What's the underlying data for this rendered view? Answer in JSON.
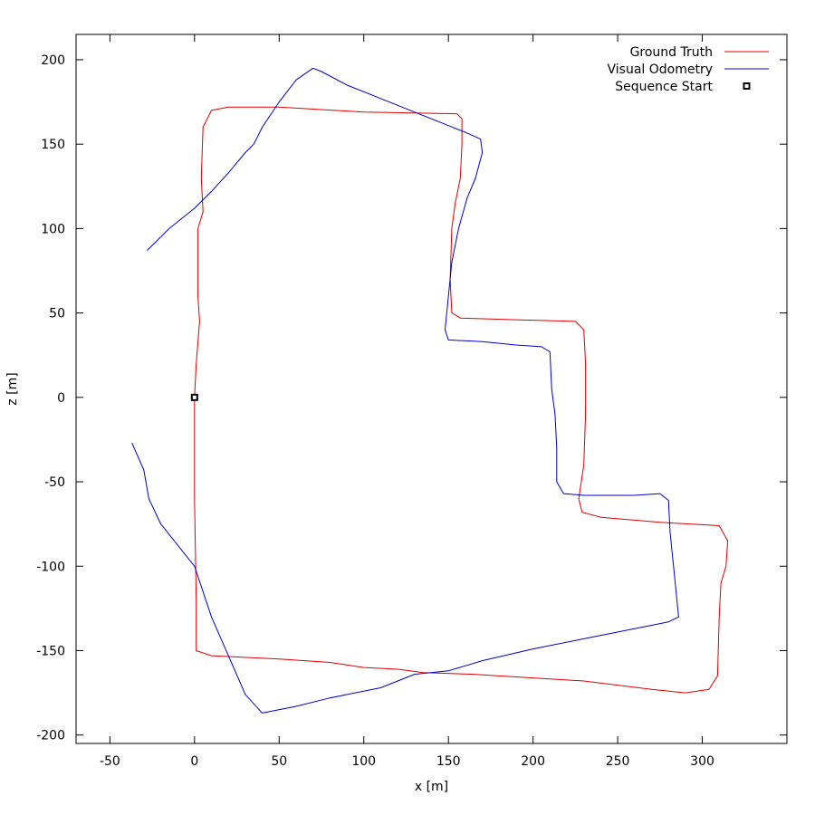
{
  "chart_data": {
    "type": "line",
    "title": "",
    "xlabel": "x [m]",
    "ylabel": "z [m]",
    "xlim": [
      -70,
      350
    ],
    "ylim": [
      -205,
      215
    ],
    "x_ticks": [
      -50,
      0,
      50,
      100,
      150,
      200,
      250,
      300
    ],
    "y_ticks": [
      -200,
      -150,
      -100,
      -50,
      0,
      50,
      100,
      150,
      200
    ],
    "grid": false,
    "legend_position": "top-right",
    "series": [
      {
        "name": "Ground Truth",
        "color": "#e00000",
        "points": [
          [
            0,
            0
          ],
          [
            1,
            20
          ],
          [
            3,
            45
          ],
          [
            2,
            60
          ],
          [
            2,
            100
          ],
          [
            5,
            110
          ],
          [
            4,
            130
          ],
          [
            5,
            160
          ],
          [
            10,
            170
          ],
          [
            20,
            172
          ],
          [
            50,
            172
          ],
          [
            100,
            169
          ],
          [
            155,
            168
          ],
          [
            158,
            165
          ],
          [
            158,
            150
          ],
          [
            157,
            130
          ],
          [
            154,
            115
          ],
          [
            152,
            100
          ],
          [
            151,
            70
          ],
          [
            152,
            50
          ],
          [
            157,
            47
          ],
          [
            190,
            46
          ],
          [
            225,
            45
          ],
          [
            230,
            40
          ],
          [
            231,
            20
          ],
          [
            231,
            -10
          ],
          [
            230,
            -40
          ],
          [
            227,
            -60
          ],
          [
            229,
            -68
          ],
          [
            240,
            -71
          ],
          [
            275,
            -74
          ],
          [
            310,
            -76
          ],
          [
            315,
            -85
          ],
          [
            314,
            -100
          ],
          [
            311,
            -110
          ],
          [
            310,
            -130
          ],
          [
            309,
            -165
          ],
          [
            304,
            -173
          ],
          [
            290,
            -175
          ],
          [
            270,
            -173
          ],
          [
            230,
            -168
          ],
          [
            180,
            -165
          ],
          [
            165,
            -164
          ],
          [
            135,
            -163
          ],
          [
            120,
            -161
          ],
          [
            100,
            -160
          ],
          [
            80,
            -157
          ],
          [
            50,
            -155
          ],
          [
            10,
            -153
          ],
          [
            1,
            -150
          ],
          [
            1,
            -120
          ],
          [
            0,
            -60
          ],
          [
            0,
            -20
          ],
          [
            0,
            0
          ]
        ]
      },
      {
        "name": "Visual Odometry",
        "color": "#0000c8",
        "points": [
          [
            -28,
            87
          ],
          [
            -15,
            100
          ],
          [
            0,
            112
          ],
          [
            10,
            122
          ],
          [
            20,
            133
          ],
          [
            30,
            145
          ],
          [
            35,
            150
          ],
          [
            40,
            160
          ],
          [
            50,
            175
          ],
          [
            60,
            188
          ],
          [
            70,
            195
          ],
          [
            75,
            193
          ],
          [
            90,
            185
          ],
          [
            110,
            177
          ],
          [
            130,
            169
          ],
          [
            150,
            161
          ],
          [
            160,
            157
          ],
          [
            169,
            153
          ],
          [
            170,
            145
          ],
          [
            166,
            130
          ],
          [
            161,
            118
          ],
          [
            156,
            100
          ],
          [
            152,
            80
          ],
          [
            150,
            60
          ],
          [
            148,
            40
          ],
          [
            150,
            34
          ],
          [
            170,
            33
          ],
          [
            190,
            31
          ],
          [
            205,
            30
          ],
          [
            210,
            27
          ],
          [
            211,
            5
          ],
          [
            213,
            -10
          ],
          [
            214,
            -30
          ],
          [
            214,
            -50
          ],
          [
            218,
            -57
          ],
          [
            230,
            -58
          ],
          [
            260,
            -58
          ],
          [
            275,
            -57
          ],
          [
            280,
            -61
          ],
          [
            281,
            -80
          ],
          [
            283,
            -100
          ],
          [
            285,
            -120
          ],
          [
            286,
            -130
          ],
          [
            280,
            -133
          ],
          [
            260,
            -137
          ],
          [
            230,
            -143
          ],
          [
            200,
            -149
          ],
          [
            170,
            -156
          ],
          [
            150,
            -162
          ],
          [
            130,
            -164
          ],
          [
            110,
            -172
          ],
          [
            80,
            -178
          ],
          [
            60,
            -183
          ],
          [
            40,
            -187
          ],
          [
            30,
            -176
          ],
          [
            10,
            -130
          ],
          [
            0,
            -100
          ],
          [
            -20,
            -75
          ],
          [
            -27,
            -60
          ],
          [
            -30,
            -43
          ],
          [
            -37,
            -27
          ]
        ]
      },
      {
        "name": "Sequence Start",
        "color": "#000000",
        "marker": "square",
        "points": [
          [
            0,
            0
          ]
        ]
      }
    ]
  }
}
